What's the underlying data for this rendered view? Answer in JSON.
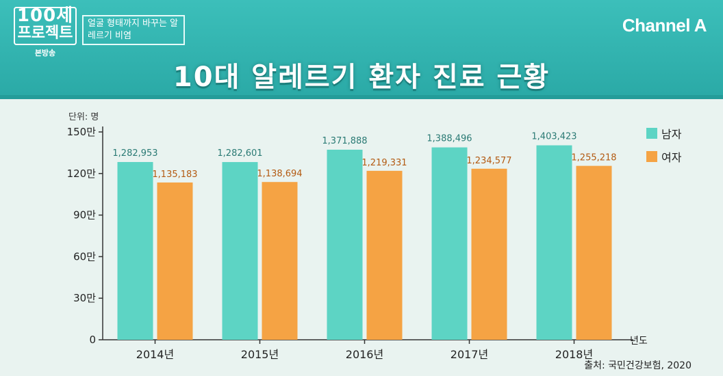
{
  "header": {
    "logo_line1": "100세",
    "logo_line2": "프로젝트",
    "logo_line3": "본방송",
    "subtitle": "얼굴 형태까지 바꾸는 알레르기 비염",
    "brand": "Channel A",
    "title": "10대 알레르기 환자 진료 근황"
  },
  "unit_label": "단위: 명",
  "x_axis_name": "년도",
  "source": "출처: 국민건강보험, 2020",
  "colors": {
    "male": "#5dd4c4",
    "female": "#f5a344",
    "male_label": "#2a7a74",
    "female_label": "#b35a12"
  },
  "legend": [
    "남자",
    "여자"
  ],
  "chart_data": {
    "type": "bar",
    "categories": [
      "2014년",
      "2015년",
      "2016년",
      "2017년",
      "2018년"
    ],
    "series": [
      {
        "name": "남자",
        "values": [
          1282953,
          1282601,
          1371888,
          1388496,
          1403423
        ],
        "labels": [
          "1,282,953",
          "1,282,601",
          "1,371,888",
          "1,388,496",
          "1,403,423"
        ]
      },
      {
        "name": "여자",
        "values": [
          1135183,
          1138694,
          1219331,
          1234577,
          1255218
        ],
        "labels": [
          "1,135,183",
          "1,138,694",
          "1,219,331",
          "1,234,577",
          "1,255,218"
        ]
      }
    ],
    "y_ticks": [
      "0",
      "30만",
      "60만",
      "90만",
      "120만",
      "150만"
    ],
    "ylim": [
      0,
      1500000
    ],
    "title": "10대 알레르기 환자 진료 근황",
    "xlabel": "년도",
    "ylabel": "단위: 명",
    "legend_position": "top-right"
  }
}
